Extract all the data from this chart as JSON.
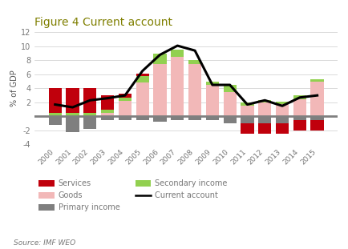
{
  "title": "Figure 4 Current account",
  "ylabel": "% of GDP",
  "source": "Source: IMF WEO",
  "years": [
    2000,
    2001,
    2002,
    2003,
    2004,
    2005,
    2006,
    2007,
    2008,
    2009,
    2010,
    2011,
    2012,
    2013,
    2014,
    2015
  ],
  "goods": [
    0.0,
    0.0,
    0.0,
    0.5,
    2.2,
    4.8,
    7.5,
    8.5,
    7.5,
    4.5,
    3.5,
    1.5,
    2.0,
    1.8,
    2.5,
    5.0
  ],
  "services": [
    3.5,
    3.5,
    3.5,
    2.0,
    0.5,
    0.3,
    0.0,
    0.0,
    0.0,
    0.0,
    0.0,
    -1.5,
    -1.5,
    -1.5,
    -1.5,
    -1.5
  ],
  "primary_income": [
    -1.2,
    -2.2,
    -1.8,
    -0.5,
    -0.5,
    -0.5,
    -0.7,
    -0.5,
    -0.5,
    -0.5,
    -1.0,
    -1.0,
    -1.0,
    -1.0,
    -0.5,
    -0.5
  ],
  "secondary_income": [
    0.5,
    0.5,
    0.5,
    0.5,
    0.5,
    1.0,
    1.5,
    1.0,
    0.5,
    0.5,
    1.0,
    0.5,
    0.3,
    0.3,
    0.5,
    0.3
  ],
  "current_account": [
    1.7,
    1.3,
    2.3,
    2.6,
    3.0,
    6.5,
    8.8,
    10.1,
    9.4,
    4.5,
    4.5,
    1.7,
    2.3,
    1.5,
    2.7,
    3.0
  ],
  "colors": {
    "goods": "#f2b8b8",
    "services": "#c0000c",
    "primary_income": "#7f7f7f",
    "secondary_income": "#92d050",
    "current_account": "#000000",
    "zeroline": "#808080"
  },
  "ylim": [
    -4,
    12
  ],
  "yticks": [
    -4,
    -2,
    0,
    2,
    4,
    6,
    8,
    10,
    12
  ],
  "title_color": "#7f7f00",
  "title_fontsize": 10,
  "legend_fontsize": 7,
  "tick_fontsize": 6.5
}
